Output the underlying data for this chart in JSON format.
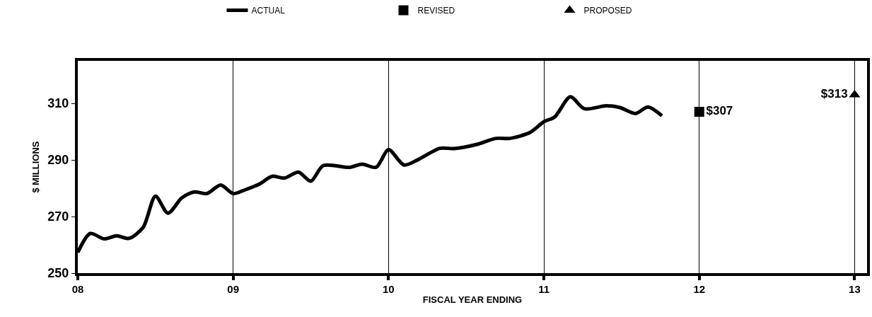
{
  "chart_data": {
    "type": "line",
    "xlabel": "FISCAL YEAR ENDING",
    "ylabel": "$ MILLIONS",
    "xlim": [
      8,
      13.08
    ],
    "ylim": [
      250,
      325
    ],
    "xticks": [
      {
        "value": 8,
        "label": "08"
      },
      {
        "value": 9,
        "label": "09"
      },
      {
        "value": 10,
        "label": "10"
      },
      {
        "value": 11,
        "label": "11"
      },
      {
        "value": 12,
        "label": "12"
      },
      {
        "value": 13,
        "label": "13"
      }
    ],
    "yticks": [
      250,
      270,
      290,
      310
    ],
    "grid": "x",
    "legend": "top",
    "line_style": "solid",
    "series": [
      {
        "name": "ACTUAL",
        "marker": "none",
        "color": "#000000",
        "x": [
          8.0,
          8.08,
          8.17,
          8.25,
          8.33,
          8.42,
          8.5,
          8.58,
          8.67,
          8.75,
          8.83,
          8.92,
          9.0,
          9.08,
          9.17,
          9.25,
          9.33,
          9.42,
          9.5,
          9.58,
          9.75,
          9.83,
          9.92,
          10.0,
          10.1,
          10.19,
          10.33,
          10.42,
          10.57,
          10.69,
          10.78,
          10.91,
          11.0,
          11.07,
          11.17,
          11.26,
          11.4,
          11.49,
          11.59,
          11.67,
          11.76
        ],
        "values": [
          257.3,
          264.0,
          262.1,
          263.2,
          262.3,
          266.1,
          277.2,
          271.2,
          276.6,
          278.7,
          278.1,
          281.1,
          278.1,
          279.5,
          281.5,
          284.2,
          283.6,
          285.7,
          282.5,
          288.0,
          287.4,
          288.5,
          287.4,
          293.6,
          288.2,
          290.1,
          294.1,
          294.0,
          295.5,
          297.6,
          297.6,
          299.7,
          303.5,
          305.2,
          312.3,
          308.1,
          309.1,
          308.5,
          306.4,
          308.7,
          305.6
        ]
      },
      {
        "name": "REVISED",
        "type": "scatter",
        "marker": "square",
        "color": "#000000",
        "x": [
          12
        ],
        "values": [
          307
        ],
        "value_labels": [
          "$307"
        ]
      },
      {
        "name": "PROPOSED",
        "type": "scatter",
        "marker": "triangle",
        "color": "#000000",
        "x": [
          13
        ],
        "values": [
          313
        ],
        "value_labels": [
          "$313"
        ]
      }
    ]
  }
}
